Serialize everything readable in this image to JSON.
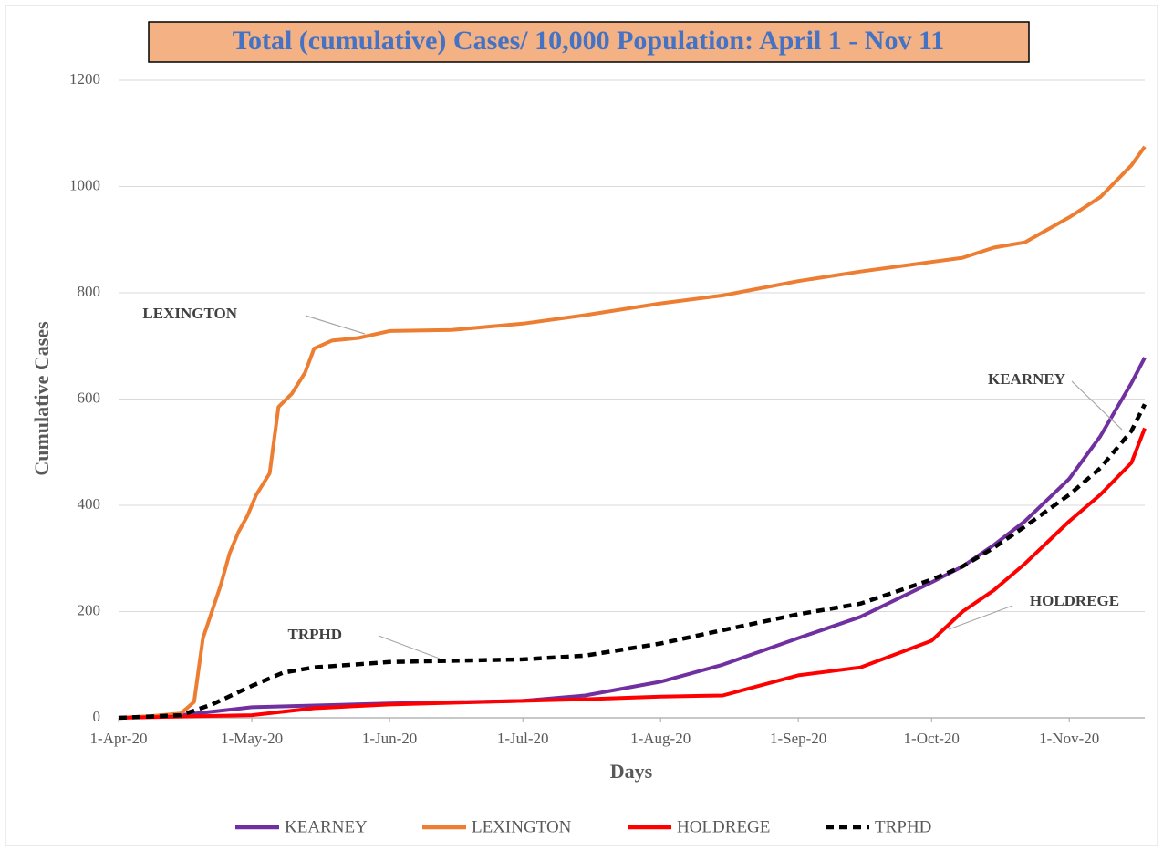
{
  "chart_data": {
    "type": "line",
    "title": "Total (cumulative) Cases/ 10,000 Population: April 1 - Nov 11",
    "x_label": "Days",
    "y_label": "Cumulative Cases",
    "xlim": [
      "2020-04-01",
      "2020-11-18"
    ],
    "xticks": [
      {
        "value": "2020-04-01",
        "label": "1-Apr-20"
      },
      {
        "value": "2020-05-01",
        "label": "1-May-20"
      },
      {
        "value": "2020-06-01",
        "label": "1-Jun-20"
      },
      {
        "value": "2020-07-01",
        "label": "1-Jul-20"
      },
      {
        "value": "2020-08-01",
        "label": "1-Aug-20"
      },
      {
        "value": "2020-09-01",
        "label": "1-Sep-20"
      },
      {
        "value": "2020-10-01",
        "label": "1-Oct-20"
      },
      {
        "value": "2020-11-01",
        "label": "1-Nov-20"
      }
    ],
    "ylim": [
      0,
      1200
    ],
    "yticks": [
      0,
      200,
      400,
      600,
      800,
      1000,
      1200
    ],
    "grid": true,
    "legend": "bottom",
    "annotations": [
      "LEXINGTON",
      "KEARNEY",
      "TRPHD",
      "HOLDREGE"
    ],
    "series": [
      {
        "name": "KEARNEY",
        "color": "#7030a0",
        "dash": false,
        "x": [
          "2020-04-01",
          "2020-04-15",
          "2020-05-01",
          "2020-06-01",
          "2020-07-01",
          "2020-07-15",
          "2020-08-01",
          "2020-08-15",
          "2020-09-01",
          "2020-09-15",
          "2020-10-01",
          "2020-10-08",
          "2020-10-15",
          "2020-10-22",
          "2020-11-01",
          "2020-11-08",
          "2020-11-15",
          "2020-11-18"
        ],
        "values": [
          0,
          5,
          20,
          27,
          32,
          42,
          68,
          100,
          150,
          190,
          255,
          285,
          325,
          370,
          450,
          530,
          630,
          678
        ]
      },
      {
        "name": "LEXINGTON",
        "color": "#ed7d31",
        "dash": false,
        "x": [
          "2020-04-01",
          "2020-04-08",
          "2020-04-15",
          "2020-04-18",
          "2020-04-20",
          "2020-04-21",
          "2020-04-24",
          "2020-04-26",
          "2020-04-28",
          "2020-04-30",
          "2020-05-02",
          "2020-05-05",
          "2020-05-07",
          "2020-05-10",
          "2020-05-13",
          "2020-05-15",
          "2020-05-19",
          "2020-05-25",
          "2020-06-01",
          "2020-06-15",
          "2020-07-01",
          "2020-07-15",
          "2020-08-01",
          "2020-08-15",
          "2020-09-01",
          "2020-09-15",
          "2020-10-01",
          "2020-10-08",
          "2020-10-15",
          "2020-10-22",
          "2020-11-01",
          "2020-11-08",
          "2020-11-15",
          "2020-11-18"
        ],
        "values": [
          0,
          3,
          8,
          30,
          150,
          175,
          250,
          310,
          350,
          380,
          420,
          460,
          585,
          610,
          650,
          695,
          710,
          715,
          728,
          730,
          742,
          758,
          780,
          795,
          822,
          840,
          858,
          866,
          885,
          895,
          942,
          980,
          1040,
          1075
        ]
      },
      {
        "name": "HOLDREGE",
        "color": "#ff0000",
        "dash": false,
        "x": [
          "2020-04-01",
          "2020-05-01",
          "2020-05-15",
          "2020-06-01",
          "2020-07-01",
          "2020-07-15",
          "2020-08-01",
          "2020-08-15",
          "2020-09-01",
          "2020-09-15",
          "2020-10-01",
          "2020-10-08",
          "2020-10-15",
          "2020-10-22",
          "2020-11-01",
          "2020-11-08",
          "2020-11-15",
          "2020-11-18"
        ],
        "values": [
          0,
          5,
          18,
          25,
          32,
          35,
          40,
          42,
          80,
          95,
          145,
          200,
          240,
          290,
          370,
          420,
          480,
          545
        ]
      },
      {
        "name": "TRPHD",
        "color": "#000000",
        "dash": true,
        "x": [
          "2020-04-01",
          "2020-04-15",
          "2020-04-22",
          "2020-05-01",
          "2020-05-08",
          "2020-05-15",
          "2020-06-01",
          "2020-07-01",
          "2020-07-15",
          "2020-08-01",
          "2020-08-15",
          "2020-09-01",
          "2020-09-15",
          "2020-10-01",
          "2020-10-08",
          "2020-10-15",
          "2020-10-22",
          "2020-11-01",
          "2020-11-08",
          "2020-11-15",
          "2020-11-18"
        ],
        "values": [
          0,
          5,
          25,
          60,
          85,
          95,
          105,
          110,
          117,
          140,
          165,
          195,
          215,
          260,
          285,
          320,
          360,
          420,
          470,
          540,
          590
        ]
      }
    ]
  }
}
